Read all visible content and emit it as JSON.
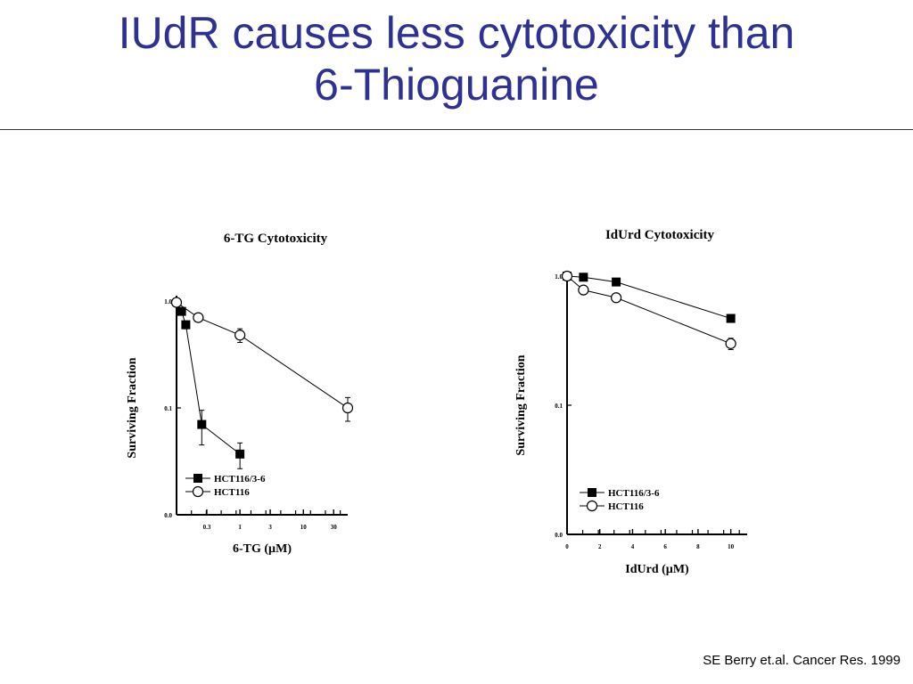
{
  "slide": {
    "title_line1": "IUdR causes less cytotoxicity than",
    "title_line2": "6-Thioguanine",
    "citation": "SE Berry et.al. Cancer Res. 1999",
    "title_color": "#2e3192"
  },
  "chart_data": [
    {
      "type": "line",
      "title": "6-TG Cytotoxicity",
      "xlabel": "6-TG (µM)",
      "ylabel": "Surviving Fraction",
      "xscale": "log",
      "yscale": "log",
      "xlim": [
        0.1,
        50
      ],
      "ylim": [
        0.01,
        1.0
      ],
      "x_ticklabels": [
        "0.3",
        "1",
        "3",
        "10",
        "30"
      ],
      "x_tickvalues": [
        0.3,
        1,
        3,
        10,
        30
      ],
      "y_ticklabels": [
        "1.0",
        "0.1",
        "0.0"
      ],
      "y_tickvalues": [
        1.0,
        0.1,
        0.01
      ],
      "legend_position": "bottom-left",
      "series": [
        {
          "name": "HCT116/3-6",
          "marker": "filled-square",
          "x": [
            0.12,
            0.14,
            0.25,
            1.0
          ],
          "y": [
            0.8,
            0.6,
            0.07,
            0.037
          ],
          "err": [
            0.05,
            0.05,
            0.025,
            0.01
          ]
        },
        {
          "name": "HCT116",
          "marker": "open-circle",
          "x": [
            0.1,
            0.22,
            1.0,
            50
          ],
          "y": [
            0.97,
            0.7,
            0.48,
            0.1
          ],
          "err": [
            0.03,
            0.03,
            0.07,
            0.025
          ]
        }
      ]
    },
    {
      "type": "line",
      "title": "IdUrd Cytotoxicity",
      "xlabel": "IdUrd (µM)",
      "ylabel": "Surviving Fraction",
      "xscale": "linear",
      "yscale": "log",
      "xlim": [
        0,
        11
      ],
      "ylim": [
        0.01,
        1.0
      ],
      "x_ticklabels": [
        "0",
        "2",
        "4",
        "6",
        "8",
        "10"
      ],
      "x_tickvalues": [
        0,
        2,
        4,
        6,
        8,
        10
      ],
      "y_ticklabels": [
        "1.0",
        "0.1",
        "0.0"
      ],
      "y_tickvalues": [
        1.0,
        0.1,
        0.01
      ],
      "legend_position": "bottom-left",
      "series": [
        {
          "name": "HCT116/3-6",
          "marker": "filled-square",
          "x": [
            0,
            1,
            3,
            10
          ],
          "y": [
            1.0,
            0.98,
            0.9,
            0.47
          ],
          "err": [
            0,
            0,
            0,
            0
          ]
        },
        {
          "name": "HCT116",
          "marker": "open-circle",
          "x": [
            0,
            1,
            3,
            10
          ],
          "y": [
            1.0,
            0.78,
            0.68,
            0.3
          ],
          "err": [
            0,
            0,
            0,
            0.03
          ]
        }
      ]
    }
  ]
}
